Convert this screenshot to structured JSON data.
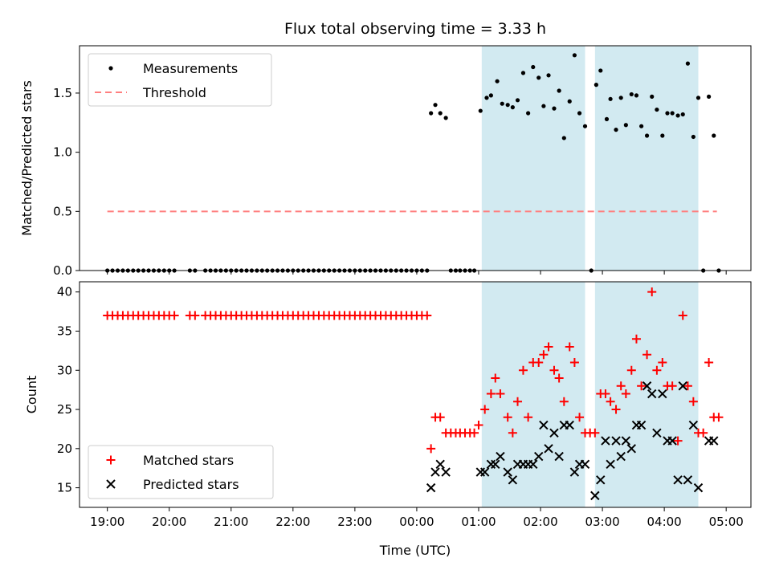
{
  "chart_data": {
    "type": "scatter",
    "title": "Flux total observing time = 3.33 h",
    "x_axis": {
      "label": "Time (UTC)",
      "units": "hours since 19:00 UTC",
      "ticks": [
        {
          "value": 0,
          "label": "19:00"
        },
        {
          "value": 1,
          "label": "20:00"
        },
        {
          "value": 2,
          "label": "21:00"
        },
        {
          "value": 3,
          "label": "22:00"
        },
        {
          "value": 4,
          "label": "23:00"
        },
        {
          "value": 5,
          "label": "00:00"
        },
        {
          "value": 6,
          "label": "01:00"
        },
        {
          "value": 7,
          "label": "02:00"
        },
        {
          "value": 8,
          "label": "03:00"
        },
        {
          "value": 9,
          "label": "04:00"
        },
        {
          "value": 10,
          "label": "05:00"
        }
      ],
      "range": [
        -0.45,
        10.4
      ]
    },
    "shaded_intervals": [
      [
        6.05,
        7.72
      ],
      [
        7.88,
        9.55
      ]
    ],
    "shade_color": "#add8e6",
    "top_panel": {
      "ylabel": "Matched/Predicted stars",
      "ylim": [
        0,
        1.9
      ],
      "yticks": [
        0.0,
        0.5,
        1.0,
        1.5
      ],
      "legend": {
        "position": "upper left",
        "items": [
          "Measurements",
          "Threshold"
        ]
      },
      "threshold": {
        "name": "Threshold",
        "value": 0.5,
        "x_range": [
          0,
          9.85
        ],
        "color": "#ff7f7f",
        "style": "dashed"
      },
      "measurements": {
        "name": "Measurements",
        "color": "#000000",
        "points": [
          [
            0.0,
            0
          ],
          [
            0.083,
            0
          ],
          [
            0.167,
            0
          ],
          [
            0.25,
            0
          ],
          [
            0.333,
            0
          ],
          [
            0.417,
            0
          ],
          [
            0.5,
            0
          ],
          [
            0.583,
            0
          ],
          [
            0.667,
            0
          ],
          [
            0.75,
            0
          ],
          [
            0.833,
            0
          ],
          [
            0.917,
            0
          ],
          [
            1.0,
            0
          ],
          [
            1.083,
            0
          ],
          [
            1.333,
            0
          ],
          [
            1.417,
            0
          ],
          [
            1.583,
            0
          ],
          [
            1.667,
            0
          ],
          [
            1.75,
            0
          ],
          [
            1.833,
            0
          ],
          [
            1.917,
            0
          ],
          [
            2.0,
            0
          ],
          [
            2.083,
            0
          ],
          [
            2.167,
            0
          ],
          [
            2.25,
            0
          ],
          [
            2.333,
            0
          ],
          [
            2.417,
            0
          ],
          [
            2.5,
            0
          ],
          [
            2.583,
            0
          ],
          [
            2.667,
            0
          ],
          [
            2.75,
            0
          ],
          [
            2.833,
            0
          ],
          [
            2.917,
            0
          ],
          [
            3.0,
            0
          ],
          [
            3.083,
            0
          ],
          [
            3.167,
            0
          ],
          [
            3.25,
            0
          ],
          [
            3.333,
            0
          ],
          [
            3.417,
            0
          ],
          [
            3.5,
            0
          ],
          [
            3.583,
            0
          ],
          [
            3.667,
            0
          ],
          [
            3.75,
            0
          ],
          [
            3.833,
            0
          ],
          [
            3.917,
            0
          ],
          [
            4.0,
            0
          ],
          [
            4.083,
            0
          ],
          [
            4.167,
            0
          ],
          [
            4.25,
            0
          ],
          [
            4.333,
            0
          ],
          [
            4.417,
            0
          ],
          [
            4.5,
            0
          ],
          [
            4.583,
            0
          ],
          [
            4.667,
            0
          ],
          [
            4.75,
            0
          ],
          [
            4.833,
            0
          ],
          [
            4.917,
            0
          ],
          [
            5.0,
            0
          ],
          [
            5.083,
            0
          ],
          [
            5.167,
            0
          ],
          [
            5.23,
            1.33
          ],
          [
            5.3,
            1.4
          ],
          [
            5.38,
            1.33
          ],
          [
            5.47,
            1.29
          ],
          [
            5.55,
            0
          ],
          [
            5.63,
            0
          ],
          [
            5.7,
            0
          ],
          [
            5.78,
            0
          ],
          [
            5.86,
            0
          ],
          [
            5.93,
            0
          ],
          [
            6.03,
            1.35
          ],
          [
            6.13,
            1.46
          ],
          [
            6.2,
            1.48
          ],
          [
            6.3,
            1.6
          ],
          [
            6.38,
            1.41
          ],
          [
            6.47,
            1.4
          ],
          [
            6.55,
            1.38
          ],
          [
            6.63,
            1.44
          ],
          [
            6.72,
            1.67
          ],
          [
            6.8,
            1.33
          ],
          [
            6.88,
            1.72
          ],
          [
            6.97,
            1.63
          ],
          [
            7.05,
            1.39
          ],
          [
            7.13,
            1.65
          ],
          [
            7.22,
            1.37
          ],
          [
            7.3,
            1.52
          ],
          [
            7.38,
            1.12
          ],
          [
            7.47,
            1.43
          ],
          [
            7.55,
            1.82
          ],
          [
            7.63,
            1.33
          ],
          [
            7.72,
            1.22
          ],
          [
            7.82,
            0
          ],
          [
            7.9,
            1.57
          ],
          [
            7.97,
            1.69
          ],
          [
            8.07,
            1.28
          ],
          [
            8.13,
            1.45
          ],
          [
            8.22,
            1.19
          ],
          [
            8.3,
            1.46
          ],
          [
            8.38,
            1.23
          ],
          [
            8.47,
            1.49
          ],
          [
            8.55,
            1.48
          ],
          [
            8.63,
            1.22
          ],
          [
            8.72,
            1.14
          ],
          [
            8.8,
            1.47
          ],
          [
            8.88,
            1.36
          ],
          [
            8.97,
            1.14
          ],
          [
            9.05,
            1.33
          ],
          [
            9.13,
            1.33
          ],
          [
            9.22,
            1.31
          ],
          [
            9.3,
            1.32
          ],
          [
            9.38,
            1.75
          ],
          [
            9.47,
            1.13
          ],
          [
            9.55,
            1.46
          ],
          [
            9.63,
            0
          ],
          [
            9.72,
            1.47
          ],
          [
            9.8,
            1.14
          ],
          [
            9.88,
            0
          ]
        ]
      }
    },
    "bottom_panel": {
      "ylabel": "Count",
      "ylim": [
        12.5,
        41.3
      ],
      "yticks": [
        15,
        20,
        25,
        30,
        35,
        40
      ],
      "legend": {
        "position": "lower left",
        "items": [
          "Matched stars",
          "Predicted stars"
        ]
      },
      "matched": {
        "name": "Matched stars",
        "color": "#ff0000",
        "marker": "+",
        "points": [
          [
            0.0,
            37
          ],
          [
            0.083,
            37
          ],
          [
            0.167,
            37
          ],
          [
            0.25,
            37
          ],
          [
            0.333,
            37
          ],
          [
            0.417,
            37
          ],
          [
            0.5,
            37
          ],
          [
            0.583,
            37
          ],
          [
            0.667,
            37
          ],
          [
            0.75,
            37
          ],
          [
            0.833,
            37
          ],
          [
            0.917,
            37
          ],
          [
            1.0,
            37
          ],
          [
            1.083,
            37
          ],
          [
            1.333,
            37
          ],
          [
            1.417,
            37
          ],
          [
            1.583,
            37
          ],
          [
            1.667,
            37
          ],
          [
            1.75,
            37
          ],
          [
            1.833,
            37
          ],
          [
            1.917,
            37
          ],
          [
            2.0,
            37
          ],
          [
            2.083,
            37
          ],
          [
            2.167,
            37
          ],
          [
            2.25,
            37
          ],
          [
            2.333,
            37
          ],
          [
            2.417,
            37
          ],
          [
            2.5,
            37
          ],
          [
            2.583,
            37
          ],
          [
            2.667,
            37
          ],
          [
            2.75,
            37
          ],
          [
            2.833,
            37
          ],
          [
            2.917,
            37
          ],
          [
            3.0,
            37
          ],
          [
            3.083,
            37
          ],
          [
            3.167,
            37
          ],
          [
            3.25,
            37
          ],
          [
            3.333,
            37
          ],
          [
            3.417,
            37
          ],
          [
            3.5,
            37
          ],
          [
            3.583,
            37
          ],
          [
            3.667,
            37
          ],
          [
            3.75,
            37
          ],
          [
            3.833,
            37
          ],
          [
            3.917,
            37
          ],
          [
            4.0,
            37
          ],
          [
            4.083,
            37
          ],
          [
            4.167,
            37
          ],
          [
            4.25,
            37
          ],
          [
            4.333,
            37
          ],
          [
            4.417,
            37
          ],
          [
            4.5,
            37
          ],
          [
            4.583,
            37
          ],
          [
            4.667,
            37
          ],
          [
            4.75,
            37
          ],
          [
            4.833,
            37
          ],
          [
            4.917,
            37
          ],
          [
            5.0,
            37
          ],
          [
            5.083,
            37
          ],
          [
            5.167,
            37
          ],
          [
            5.23,
            20
          ],
          [
            5.3,
            24
          ],
          [
            5.38,
            24
          ],
          [
            5.47,
            22
          ],
          [
            5.55,
            22
          ],
          [
            5.63,
            22
          ],
          [
            5.7,
            22
          ],
          [
            5.78,
            22
          ],
          [
            5.86,
            22
          ],
          [
            5.93,
            22
          ],
          [
            6.0,
            23
          ],
          [
            6.1,
            25
          ],
          [
            6.2,
            27
          ],
          [
            6.27,
            29
          ],
          [
            6.35,
            27
          ],
          [
            6.47,
            24
          ],
          [
            6.55,
            22
          ],
          [
            6.63,
            26
          ],
          [
            6.72,
            30
          ],
          [
            6.8,
            24
          ],
          [
            6.88,
            31
          ],
          [
            6.97,
            31
          ],
          [
            7.05,
            32
          ],
          [
            7.13,
            33
          ],
          [
            7.22,
            30
          ],
          [
            7.3,
            29
          ],
          [
            7.38,
            26
          ],
          [
            7.47,
            33
          ],
          [
            7.55,
            31
          ],
          [
            7.63,
            24
          ],
          [
            7.72,
            22
          ],
          [
            7.8,
            22
          ],
          [
            7.88,
            22
          ],
          [
            7.97,
            27
          ],
          [
            8.05,
            27
          ],
          [
            8.13,
            26
          ],
          [
            8.22,
            25
          ],
          [
            8.3,
            28
          ],
          [
            8.38,
            27
          ],
          [
            8.47,
            30
          ],
          [
            8.55,
            34
          ],
          [
            8.63,
            28
          ],
          [
            8.72,
            32
          ],
          [
            8.8,
            40
          ],
          [
            8.88,
            30
          ],
          [
            8.97,
            31
          ],
          [
            9.05,
            28
          ],
          [
            9.13,
            28
          ],
          [
            9.22,
            21
          ],
          [
            9.3,
            37
          ],
          [
            9.38,
            28
          ],
          [
            9.47,
            26
          ],
          [
            9.55,
            22
          ],
          [
            9.63,
            22
          ],
          [
            9.72,
            31
          ],
          [
            9.8,
            24
          ],
          [
            9.88,
            24
          ]
        ]
      },
      "predicted": {
        "name": "Predicted stars",
        "color": "#000000",
        "marker": "x",
        "points": [
          [
            5.23,
            15
          ],
          [
            5.3,
            17
          ],
          [
            5.38,
            18
          ],
          [
            5.47,
            17
          ],
          [
            6.03,
            17
          ],
          [
            6.1,
            17
          ],
          [
            6.2,
            18
          ],
          [
            6.27,
            18
          ],
          [
            6.35,
            19
          ],
          [
            6.47,
            17
          ],
          [
            6.55,
            16
          ],
          [
            6.63,
            18
          ],
          [
            6.72,
            18
          ],
          [
            6.8,
            18
          ],
          [
            6.88,
            18
          ],
          [
            6.97,
            19
          ],
          [
            7.05,
            23
          ],
          [
            7.13,
            20
          ],
          [
            7.22,
            22
          ],
          [
            7.3,
            19
          ],
          [
            7.38,
            23
          ],
          [
            7.47,
            23
          ],
          [
            7.55,
            17
          ],
          [
            7.63,
            18
          ],
          [
            7.72,
            18
          ],
          [
            7.88,
            14
          ],
          [
            7.97,
            16
          ],
          [
            8.05,
            21
          ],
          [
            8.13,
            18
          ],
          [
            8.22,
            21
          ],
          [
            8.3,
            19
          ],
          [
            8.38,
            21
          ],
          [
            8.47,
            20
          ],
          [
            8.55,
            23
          ],
          [
            8.63,
            23
          ],
          [
            8.72,
            28
          ],
          [
            8.8,
            27
          ],
          [
            8.88,
            22
          ],
          [
            8.97,
            27
          ],
          [
            9.05,
            21
          ],
          [
            9.13,
            21
          ],
          [
            9.22,
            16
          ],
          [
            9.3,
            28
          ],
          [
            9.38,
            16
          ],
          [
            9.47,
            23
          ],
          [
            9.55,
            15
          ],
          [
            9.72,
            21
          ],
          [
            9.8,
            21
          ]
        ]
      }
    }
  }
}
